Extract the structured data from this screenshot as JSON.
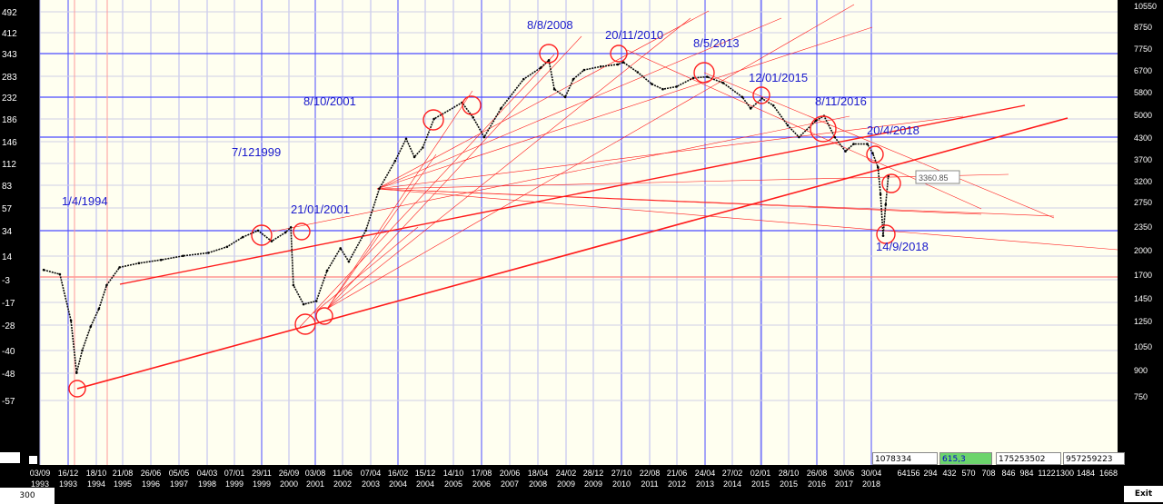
{
  "window": {
    "zoom_label": "300",
    "exit_label": "Exit"
  },
  "readouts": {
    "r1": "1078334",
    "r2": "615,3",
    "r3": "175253502",
    "r4": "957259223"
  },
  "bottom_scale": [
    "64156",
    "294",
    "432",
    "570",
    "708",
    "846",
    "984",
    "1122",
    "1300",
    "1484",
    "1668"
  ],
  "chart_data": {
    "type": "line",
    "title": "",
    "xlabel": "",
    "ylabel": "",
    "grid": true,
    "x_ticks": [
      {
        "d": "03/09",
        "y": "1993"
      },
      {
        "d": "16/12",
        "y": "1993"
      },
      {
        "d": "18/10",
        "y": "1994"
      },
      {
        "d": "21/08",
        "y": "1995"
      },
      {
        "d": "26/06",
        "y": "1996"
      },
      {
        "d": "05/05",
        "y": "1997"
      },
      {
        "d": "04/03",
        "y": "1998"
      },
      {
        "d": "07/01",
        "y": "1999"
      },
      {
        "d": "29/11",
        "y": "1999"
      },
      {
        "d": "26/09",
        "y": "2000"
      },
      {
        "d": "03/08",
        "y": "2001"
      },
      {
        "d": "11/06",
        "y": "2002"
      },
      {
        "d": "07/04",
        "y": "2003"
      },
      {
        "d": "16/02",
        "y": "2004"
      },
      {
        "d": "15/12",
        "y": "2004"
      },
      {
        "d": "14/10",
        "y": "2005"
      },
      {
        "d": "17/08",
        "y": "2006"
      },
      {
        "d": "20/06",
        "y": "2007"
      },
      {
        "d": "18/04",
        "y": "2008"
      },
      {
        "d": "24/02",
        "y": "2009"
      },
      {
        "d": "28/12",
        "y": "2009"
      },
      {
        "d": "27/10",
        "y": "2010"
      },
      {
        "d": "22/08",
        "y": "2011"
      },
      {
        "d": "21/06",
        "y": "2012"
      },
      {
        "d": "24/04",
        "y": "2013"
      },
      {
        "d": "27/02",
        "y": "2014"
      },
      {
        "d": "02/01",
        "y": "2015"
      },
      {
        "d": "28/10",
        "y": "2015"
      },
      {
        "d": "26/08",
        "y": "2016"
      },
      {
        "d": "30/06",
        "y": "2017"
      },
      {
        "d": "30/04",
        "y": "2018"
      }
    ],
    "left_axis": [
      "492",
      "412",
      "343",
      "283",
      "232",
      "186",
      "146",
      "112",
      "83",
      "57",
      "34",
      "14",
      "-3",
      "-17",
      "-28",
      "-40",
      "-48",
      "-57"
    ],
    "right_axis": [
      "10550",
      "8750",
      "7750",
      "6700",
      "5800",
      "5000",
      "4300",
      "3700",
      "3200",
      "2750",
      "2350",
      "2000",
      "1700",
      "1450",
      "1250",
      "1050",
      "900",
      "750"
    ],
    "annotations": [
      {
        "text": "1/4/1994"
      },
      {
        "text": "7/121999"
      },
      {
        "text": "8/10/2001"
      },
      {
        "text": "21/01/2001"
      },
      {
        "text": "8/8/2008"
      },
      {
        "text": "20/11/2010"
      },
      {
        "text": "8/5/2013"
      },
      {
        "text": "12/01/2015"
      },
      {
        "text": "8/11/2016"
      },
      {
        "text": "20/4/2018"
      },
      {
        "text": "14/9/2018"
      }
    ],
    "price_label": "3360.85",
    "series": [
      {
        "values": [
          [
            "1993-09",
            1750
          ],
          [
            "1993-11",
            1700
          ],
          [
            "1994-01",
            1250
          ],
          [
            "1994-03",
            880
          ],
          [
            "1994-05",
            1020
          ],
          [
            "1994-08",
            1200
          ],
          [
            "1994-11",
            1350
          ],
          [
            "1995-02",
            1580
          ],
          [
            "1995-07",
            1780
          ],
          [
            "1996-02",
            1830
          ],
          [
            "1996-10",
            1870
          ],
          [
            "1997-06",
            1920
          ],
          [
            "1998-03",
            1960
          ],
          [
            "1998-10",
            2040
          ],
          [
            "1999-04",
            2180
          ],
          [
            "1999-10",
            2280
          ],
          [
            "2000-03",
            2120
          ],
          [
            "2000-08",
            2250
          ],
          [
            "2000-10",
            2330
          ],
          [
            "2000-11",
            1580
          ],
          [
            "2001-03",
            1390
          ],
          [
            "2001-08",
            1420
          ],
          [
            "2001-12",
            1740
          ],
          [
            "2002-05",
            2020
          ],
          [
            "2002-08",
            1850
          ],
          [
            "2003-02",
            2280
          ],
          [
            "2003-07",
            3020
          ],
          [
            "2004-01",
            3650
          ],
          [
            "2004-05",
            4250
          ],
          [
            "2004-08",
            3750
          ],
          [
            "2004-11",
            4000
          ],
          [
            "2005-03",
            4850
          ],
          [
            "2006-01",
            5400
          ],
          [
            "2006-05",
            4900
          ],
          [
            "2006-09",
            4300
          ],
          [
            "2007-03",
            5200
          ],
          [
            "2007-11",
            6300
          ],
          [
            "2008-05",
            6800
          ],
          [
            "2008-08",
            7150
          ],
          [
            "2008-10",
            5900
          ],
          [
            "2009-02",
            5600
          ],
          [
            "2009-05",
            6300
          ],
          [
            "2009-09",
            6700
          ],
          [
            "2010-03",
            6850
          ],
          [
            "2010-09",
            6950
          ],
          [
            "2010-11",
            7050
          ],
          [
            "2011-04",
            6600
          ],
          [
            "2011-09",
            6100
          ],
          [
            "2012-01",
            5900
          ],
          [
            "2012-06",
            6000
          ],
          [
            "2012-12",
            6350
          ],
          [
            "2013-05",
            6400
          ],
          [
            "2013-11",
            6150
          ],
          [
            "2014-06",
            5600
          ],
          [
            "2014-09",
            5200
          ],
          [
            "2015-01",
            5550
          ],
          [
            "2015-05",
            5300
          ],
          [
            "2015-10",
            4650
          ],
          [
            "2016-02",
            4300
          ],
          [
            "2016-08",
            4800
          ],
          [
            "2016-11",
            4950
          ],
          [
            "2017-03",
            4300
          ],
          [
            "2017-07",
            3900
          ],
          [
            "2017-10",
            4100
          ],
          [
            "2018-03",
            4100
          ],
          [
            "2018-05",
            3850
          ],
          [
            "2018-07",
            3500
          ],
          [
            "2018-08",
            2900
          ],
          [
            "2018-09",
            2200
          ],
          [
            "2018-10",
            2700
          ],
          [
            "2018-11",
            3300
          ]
        ]
      }
    ]
  }
}
